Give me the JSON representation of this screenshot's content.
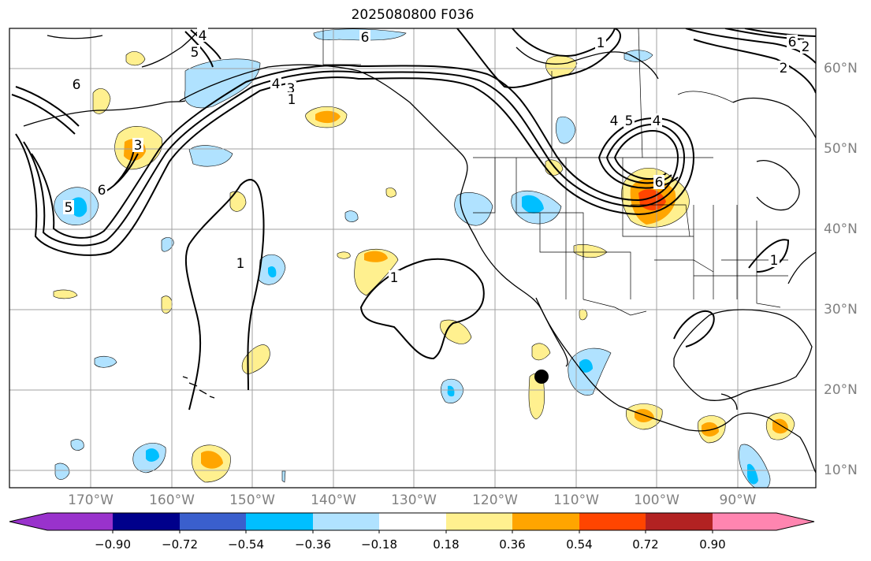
{
  "title": "2025080800 F036",
  "lat_labels": [
    "60°N",
    "50°N",
    "40°N",
    "30°N",
    "20°N",
    "10°N"
  ],
  "lon_labels": [
    "170°W",
    "160°W",
    "150°W",
    "140°W",
    "130°W",
    "120°W",
    "110°W",
    "100°W",
    "90°W"
  ],
  "contour_labels": [
    "4",
    "5",
    "6",
    "3",
    "6",
    "5",
    "4",
    "3",
    "1",
    "6",
    "1",
    "1",
    "4",
    "5",
    "4",
    "6",
    "6",
    "2",
    "1",
    "1",
    "2"
  ],
  "colorbar": {
    "tick_labels": [
      "−0.90",
      "−0.72",
      "−0.54",
      "−0.36",
      "−0.18",
      "0.18",
      "0.36",
      "0.54",
      "0.72",
      "0.90"
    ],
    "colors": [
      "#9932cc",
      "#00008b",
      "#3a5fcd",
      "#00bfff",
      "#b0e2ff",
      "#ffffff",
      "#fff08f",
      "#ffa500",
      "#ff4500",
      "#b22222",
      "#ff85b0"
    ]
  }
}
